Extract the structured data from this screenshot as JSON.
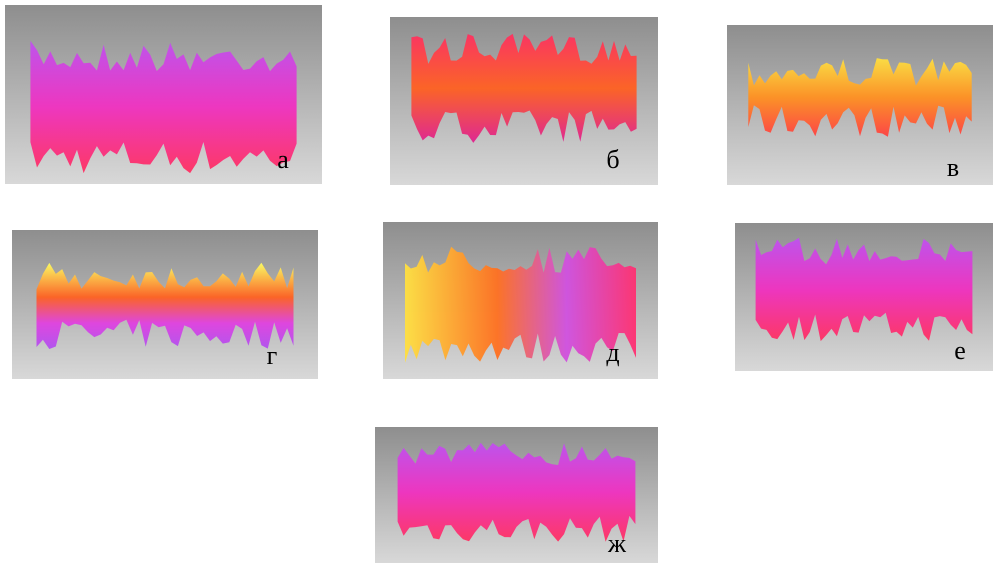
{
  "panels": [
    {
      "label": "а"
    },
    {
      "label": "б"
    },
    {
      "label": "в"
    },
    {
      "label": "г"
    },
    {
      "label": "д"
    },
    {
      "label": "е"
    },
    {
      "label": "ж"
    }
  ]
}
